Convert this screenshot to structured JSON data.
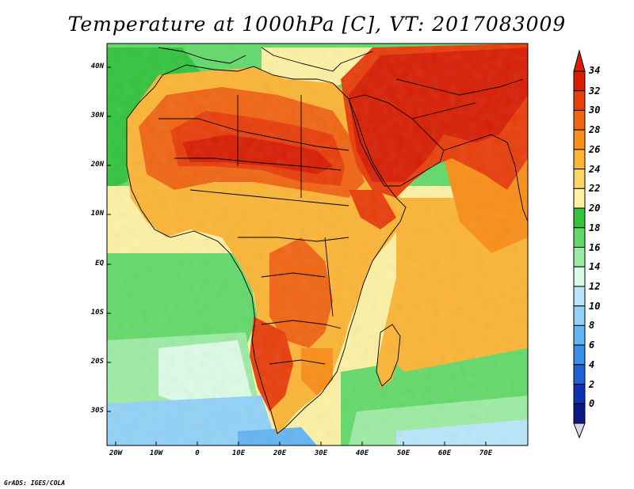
{
  "title": "Temperature at 1000hPa [C], VT: 2017083009",
  "footer": "GrADS: IGES/COLA",
  "map": {
    "region": "Africa / Middle East",
    "lon_range": [
      -22,
      80
    ],
    "lat_range": [
      -36,
      45
    ],
    "latitude_labels": [
      "40N",
      "30N",
      "20N",
      "10N",
      "EQ",
      "10S",
      "20S",
      "30S"
    ],
    "longitude_labels": [
      "20W",
      "10W",
      "0",
      "10E",
      "20E",
      "30E",
      "40E",
      "50E",
      "60E",
      "70E"
    ]
  },
  "colorbar": {
    "labels": [
      "34",
      "32",
      "30",
      "28",
      "26",
      "24",
      "22",
      "20",
      "18",
      "16",
      "14",
      "12",
      "10",
      "8",
      "6",
      "4",
      "2",
      "0"
    ],
    "colors": [
      "#d81e05",
      "#e83e0b",
      "#f06513",
      "#f98e18",
      "#fbb536",
      "#fbd566",
      "#fdf1a4",
      "#33c33d",
      "#63d96a",
      "#9ceca3",
      "#dcfbe6",
      "#b9e6fb",
      "#91d2f7",
      "#64b4f2",
      "#3b8fe8",
      "#1f62d6",
      "#0a33b2",
      "#0c1883"
    ]
  }
}
